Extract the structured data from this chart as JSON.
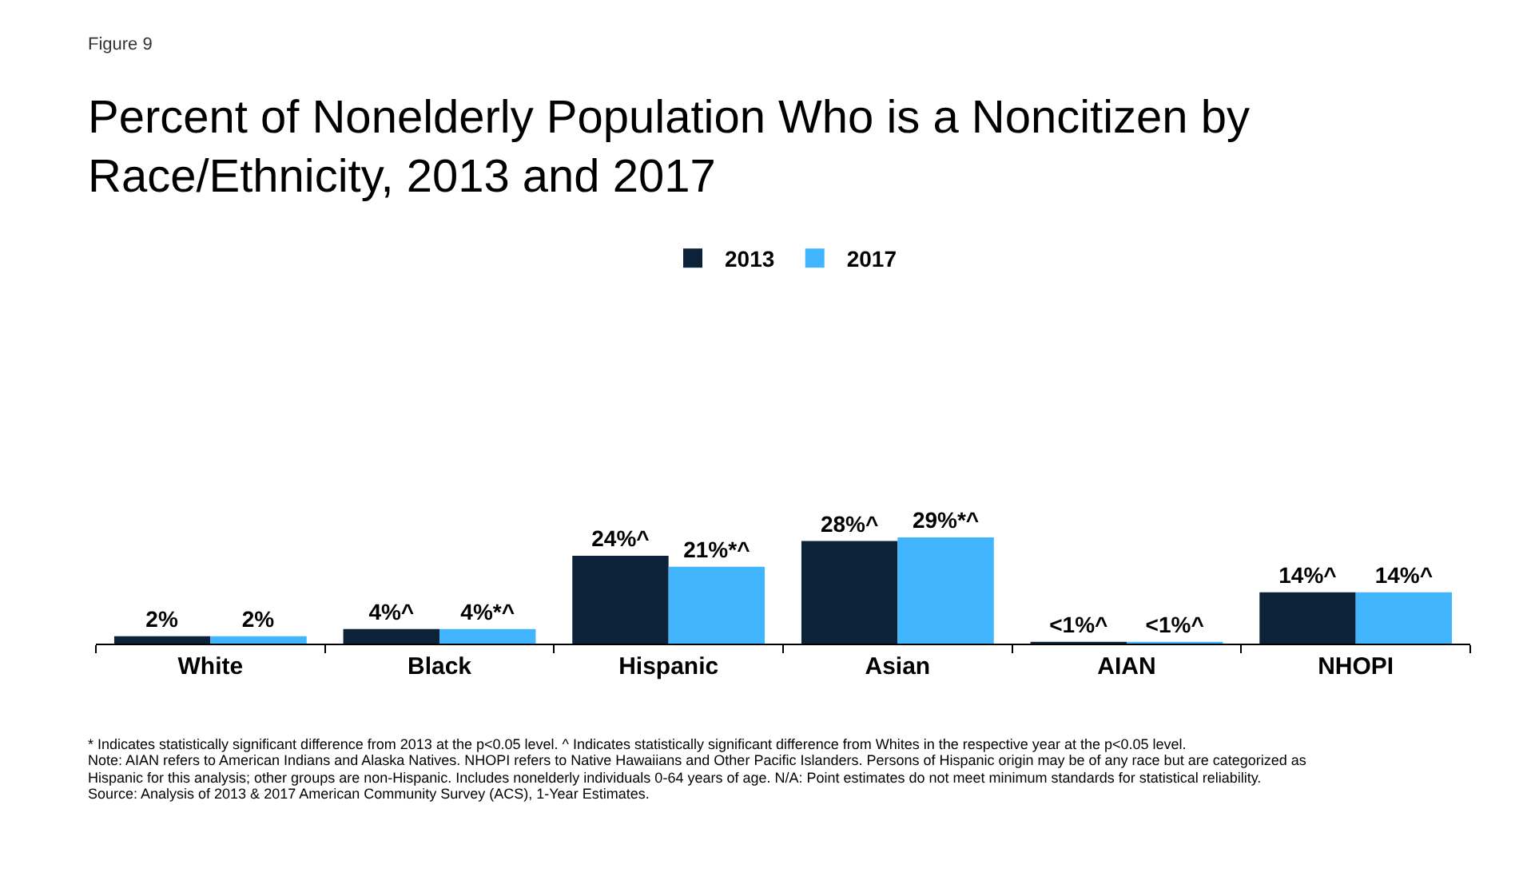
{
  "chart_data": {
    "type": "bar",
    "title": "Percent of Nonelderly Population Who is a Noncitizen by Race/Ethnicity, 2013 and 2017",
    "categories": [
      "White",
      "Black",
      "Hispanic",
      "Asian",
      "AIAN",
      "NHOPI"
    ],
    "series": [
      {
        "name": "2013",
        "color": "#0b2239",
        "values": [
          2,
          4,
          24,
          28,
          0.5,
          14
        ],
        "value_labels": [
          "2%",
          "4%^",
          "24%^",
          "28%^",
          "<1%^",
          "14%^"
        ]
      },
      {
        "name": "2017",
        "color": "#41b6ff",
        "values": [
          2,
          4,
          21,
          29,
          0.5,
          14
        ],
        "value_labels": [
          "2%",
          "4%*^",
          "21%*^",
          "29%*^",
          "<1%^",
          "14%^"
        ]
      }
    ],
    "tick_labels": "x",
    "grid": false,
    "legend": "top",
    "annotations": [
      "Figure 9",
      "* Indicates statistically significant difference from 2013 at the p<0.05 level. ^ Indicates statistically significant difference from Whites in the respective year at the p<0.05 level.",
      "Note: AIAN refers to American Indians and Alaska Natives. NHOPI refers to Native Hawaiians and Other Pacific Islanders. Persons of Hispanic origin may be of any race but are categorized as Hispanic for this analysis; other groups are non-Hispanic. Includes nonelderly individuals 0-64 years of age. N/A: Point estimates do not meet minimum standards for statistical reliability.",
      "Source: Analysis of 2013 & 2017 American Community Survey (ACS), 1-Year Estimates."
    ]
  }
}
